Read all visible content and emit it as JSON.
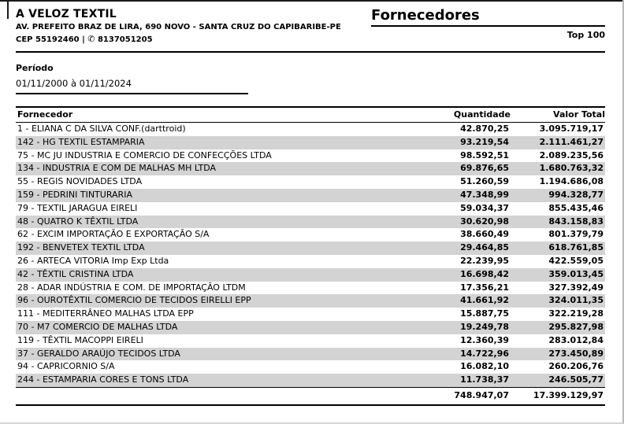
{
  "company": {
    "name": "A VELOZ TEXTIL",
    "address": "AV. PREFEITO BRAZ DE LIRA, 690 NOVO - SANTA CRUZ DO CAPIBARIBE-PE",
    "cep": "CEP 55192460 |",
    "phone_icon": "✆",
    "phone": "8137051205"
  },
  "report": {
    "title": "Fornecedores",
    "subtitle": "Top 100"
  },
  "period": {
    "label": "Período",
    "value": "01/11/2000 à 01/11/2024"
  },
  "table": {
    "columns": [
      "Fornecedor",
      "Quantidade",
      "Valor Total"
    ],
    "rows": [
      {
        "fornecedor": "1 - ELIANA C DA SILVA CONF.(darttroid)",
        "quantidade": "42.870,25",
        "valor_total": "3.095.719,17"
      },
      {
        "fornecedor": "142 - HG TEXTIL ESTAMPARIA",
        "quantidade": "93.219,54",
        "valor_total": "2.111.461,27"
      },
      {
        "fornecedor": "75 - MC JU INDUSTRIA E COMERCIO DE CONFECÇÕES LTDA",
        "quantidade": "98.592,51",
        "valor_total": "2.089.235,56"
      },
      {
        "fornecedor": "134 - INDUSTRIA E COM DE MALHAS MH LTDA",
        "quantidade": "69.876,65",
        "valor_total": "1.680.763,32"
      },
      {
        "fornecedor": "55 - REGIS NOVIDADES LTDA",
        "quantidade": "51.260,59",
        "valor_total": "1.194.686,08"
      },
      {
        "fornecedor": "159 - PEDRINI TINTURARIA",
        "quantidade": "47.348,99",
        "valor_total": "994.328,77"
      },
      {
        "fornecedor": "79 - TEXTIL JARAGUA EIRELI",
        "quantidade": "59.034,37",
        "valor_total": "855.435,46"
      },
      {
        "fornecedor": "48 - QUATRO K TÊXTIL LTDA",
        "quantidade": "30.620,98",
        "valor_total": "843.158,83"
      },
      {
        "fornecedor": "62 - EXCIM IMPORTAÇÃO E EXPORTAÇÃO S/A",
        "quantidade": "38.660,49",
        "valor_total": "801.379,79"
      },
      {
        "fornecedor": "192 - BENVETEX TEXTIL LTDA",
        "quantidade": "29.464,85",
        "valor_total": "618.761,85"
      },
      {
        "fornecedor": "26 - ARTECA VITORIA Imp Exp Ltda",
        "quantidade": "22.239,95",
        "valor_total": "422.559,05"
      },
      {
        "fornecedor": "42 - TÊXTIL CRISTINA LTDA",
        "quantidade": "16.698,42",
        "valor_total": "359.013,45"
      },
      {
        "fornecedor": "28 - ADAR INDÚSTRIA E COM. DE IMPORTAÇÃO LTDM",
        "quantidade": "17.356,21",
        "valor_total": "327.392,49"
      },
      {
        "fornecedor": "96 - OUROTÊXTIL COMERCIO DE TECIDOS EIRELLI EPP",
        "quantidade": "41.661,92",
        "valor_total": "324.011,35"
      },
      {
        "fornecedor": "111 - MEDITERRÂNEO MALHAS LTDA EPP",
        "quantidade": "15.887,75",
        "valor_total": "322.219,28"
      },
      {
        "fornecedor": "70 - M7 COMERCIO DE MALHAS LTDA",
        "quantidade": "19.249,78",
        "valor_total": "295.827,98"
      },
      {
        "fornecedor": "119 - TÊXTIL MACOPPI EIRELI",
        "quantidade": "12.360,39",
        "valor_total": "283.012,84"
      },
      {
        "fornecedor": "37 - GERALDO ARAÚJO TECIDOS LTDA",
        "quantidade": "14.722,96",
        "valor_total": "273.450,89"
      },
      {
        "fornecedor": "94 - CAPRICORNIO S/A",
        "quantidade": "16.082,10",
        "valor_total": "260.206,76"
      },
      {
        "fornecedor": "244 - ESTAMPARIA CORES E TONS LTDA",
        "quantidade": "11.738,37",
        "valor_total": "246.505,77"
      }
    ],
    "totals": {
      "quantidade": "748.947,07",
      "valor_total": "17.399.129,97"
    }
  },
  "colors": {
    "stripe": "#d3d3d3",
    "border": "#000000"
  }
}
